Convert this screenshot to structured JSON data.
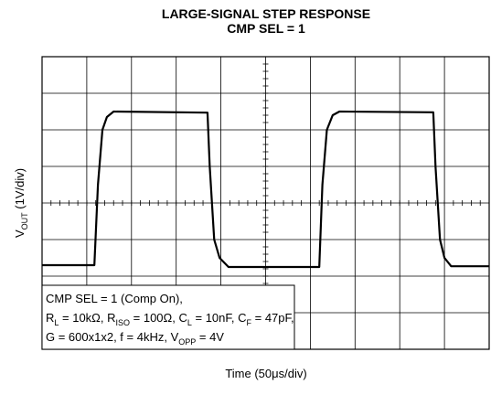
{
  "chart_data": {
    "type": "line",
    "title": [
      "LARGE-SIGNAL STEP RESPONSE",
      "CMP SEL = 1"
    ],
    "x_label": "Time (50μs/div)",
    "y_label": [
      "V",
      "OUT",
      " (1V/div)"
    ],
    "xlim": [
      0,
      10
    ],
    "ylim": [
      0,
      8
    ],
    "xticks": [
      0,
      1,
      2,
      3,
      4,
      5,
      6,
      7,
      8,
      9,
      10
    ],
    "yticks": [
      0,
      1,
      2,
      3,
      4,
      5,
      6,
      7,
      8
    ],
    "grid": true,
    "series": [
      {
        "color": "#000000",
        "x": [
          0,
          1.17,
          1.25,
          1.35,
          1.45,
          1.6,
          3.7,
          3.75,
          3.85,
          3.97,
          4.17,
          6.2,
          6.27,
          6.37,
          6.5,
          6.65,
          8.75,
          8.8,
          8.9,
          9.0,
          9.15,
          10
        ],
        "values": [
          2.3,
          2.3,
          4.5,
          6.0,
          6.35,
          6.5,
          6.47,
          5.0,
          3.0,
          2.5,
          2.25,
          2.25,
          4.5,
          6.0,
          6.4,
          6.5,
          6.48,
          5.0,
          3.0,
          2.5,
          2.27,
          2.27
        ]
      }
    ],
    "annotation": [
      [
        "CMP SEL = 1 (Comp On),"
      ],
      [
        "R",
        "L",
        " = 10kΩ, R",
        "ISO",
        " = 100Ω, C",
        "L",
        " = 10nF, C",
        "F",
        " = 47pF,"
      ],
      [
        "G = 600x1x2, f = 4kHz, V",
        "OPP",
        " = 4V"
      ]
    ]
  }
}
